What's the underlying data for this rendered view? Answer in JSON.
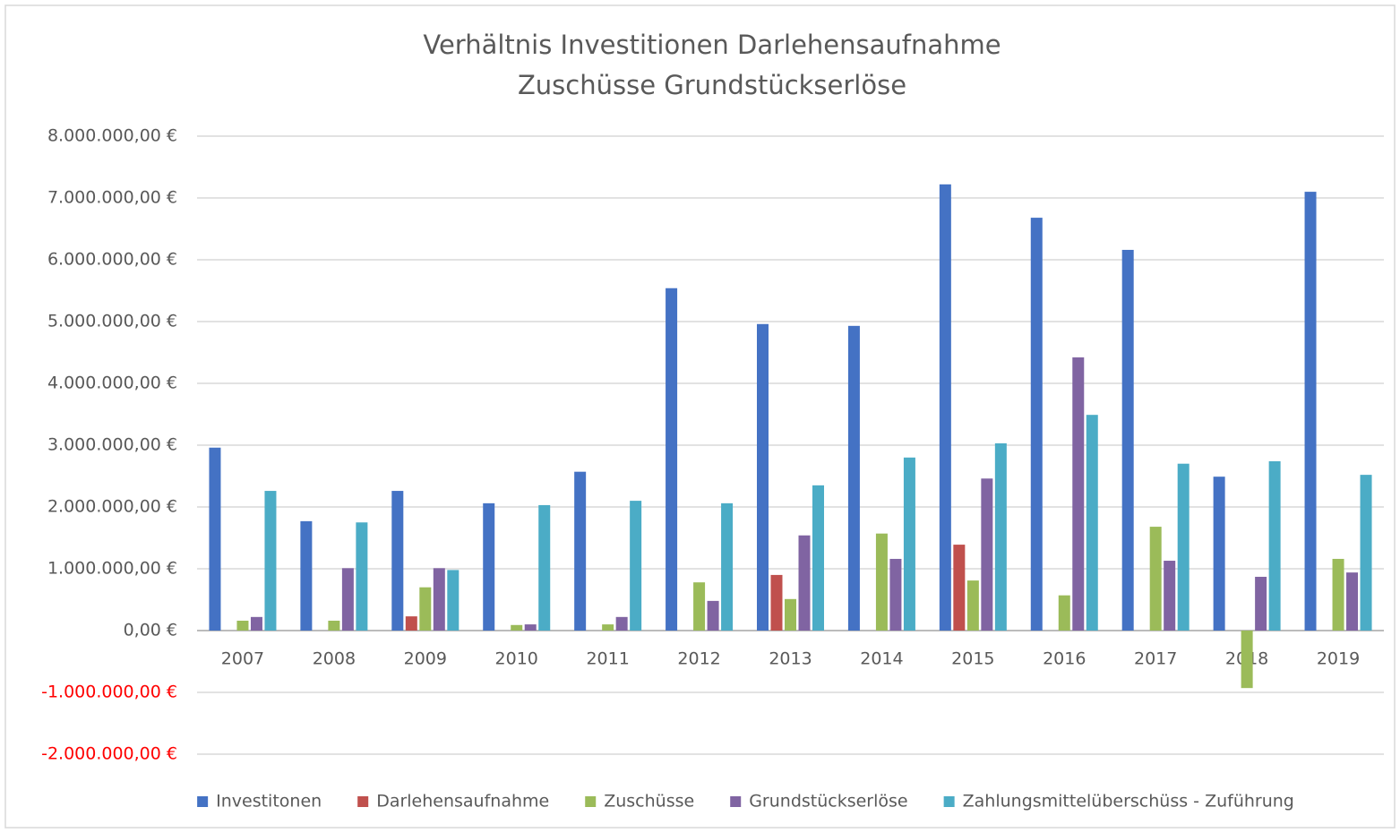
{
  "chart_data": {
    "type": "bar",
    "title": [
      "Verhältnis Investitionen Darlehensaufnahme",
      "Zuschüsse Grundstückserlöse"
    ],
    "categories": [
      "2007",
      "2008",
      "2009",
      "2010",
      "2011",
      "2012",
      "2013",
      "2014",
      "2015",
      "2016",
      "2017",
      "2018",
      "2019"
    ],
    "series": [
      {
        "name": "Investitonen",
        "color": "#4472c4",
        "values": [
          2960000,
          1770000,
          2260000,
          2060000,
          2570000,
          5540000,
          4960000,
          4930000,
          7220000,
          6680000,
          6160000,
          2490000,
          7100000
        ]
      },
      {
        "name": "Darlehensaufnahme",
        "color": "#c0504d",
        "values": [
          0,
          0,
          230000,
          0,
          0,
          0,
          900000,
          0,
          1390000,
          0,
          0,
          0,
          0
        ]
      },
      {
        "name": "Zuschüsse",
        "color": "#9bbb59",
        "values": [
          160000,
          160000,
          700000,
          90000,
          100000,
          780000,
          510000,
          1570000,
          810000,
          570000,
          1680000,
          -930000,
          1160000
        ]
      },
      {
        "name": "Grundstückserlöse",
        "color": "#8064a2",
        "values": [
          220000,
          1010000,
          1010000,
          100000,
          220000,
          480000,
          1540000,
          1160000,
          2460000,
          4420000,
          1130000,
          870000,
          940000
        ]
      },
      {
        "name": "Zahlungsmittelüberschüss - Zuführung",
        "color": "#4bacc6",
        "values": [
          2260000,
          1750000,
          980000,
          2030000,
          2100000,
          2060000,
          2350000,
          2800000,
          3030000,
          3490000,
          2700000,
          2740000,
          2520000
        ]
      }
    ],
    "ylim": [
      -2000000,
      8000000
    ],
    "yticks": [
      {
        "value": -2000000,
        "label": "-2.000.000,00 €"
      },
      {
        "value": -1000000,
        "label": "-1.000.000,00 €"
      },
      {
        "value": 0,
        "label": "0,00 €"
      },
      {
        "value": 1000000,
        "label": "1.000.000,00 €"
      },
      {
        "value": 2000000,
        "label": "2.000.000,00 €"
      },
      {
        "value": 3000000,
        "label": "3.000.000,00 €"
      },
      {
        "value": 4000000,
        "label": "4.000.000,00 €"
      },
      {
        "value": 5000000,
        "label": "5.000.000,00 €"
      },
      {
        "value": 6000000,
        "label": "6.000.000,00 €"
      },
      {
        "value": 7000000,
        "label": "7.000.000,00 €"
      },
      {
        "value": 8000000,
        "label": "8.000.000,00 €"
      }
    ],
    "negative_tick_color": "#ff0000",
    "grid": true,
    "legend": "bottom"
  }
}
